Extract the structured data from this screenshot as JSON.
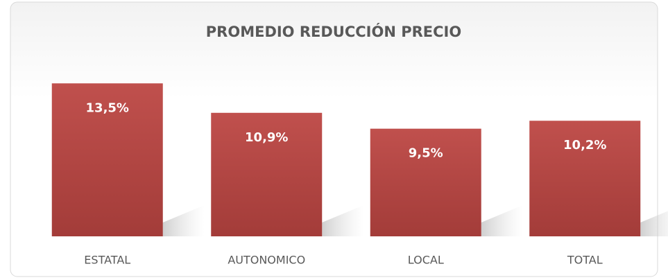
{
  "chart_data": {
    "type": "bar",
    "title": "PROMEDIO REDUCCIÓN PRECIO",
    "categories": [
      "ESTATAL",
      "AUTONOMICO",
      "LOCAL",
      "TOTAL"
    ],
    "values": [
      13.5,
      10.9,
      9.5,
      10.2
    ],
    "value_labels": [
      "13,5%",
      "10,9%",
      "9,5%",
      "10,2%"
    ],
    "color": "#c0504d"
  }
}
